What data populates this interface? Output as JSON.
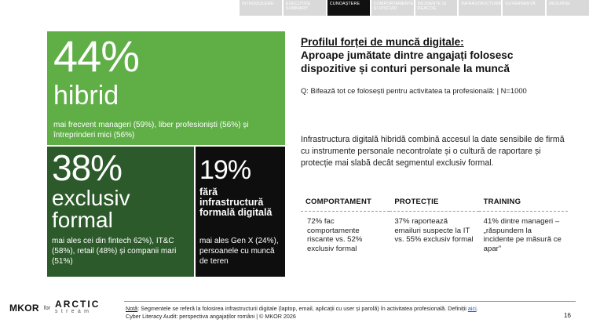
{
  "nav": {
    "tabs": [
      {
        "label": "INTRODUCERE",
        "active": false
      },
      {
        "label": "EXECUTIVE SUMMARY",
        "active": false
      },
      {
        "label": "CUNOAȘTERE",
        "active": true
      },
      {
        "label": "COMPORTAMENTE ȘI RISCURI",
        "active": false
      },
      {
        "label": "INCIDENTE ȘI REACȚIE",
        "active": false
      },
      {
        "label": "INFRASTRUCTURĂ",
        "active": false
      },
      {
        "label": "GUVERNANȚĂ",
        "active": false
      },
      {
        "label": "RESURSE",
        "active": false
      }
    ]
  },
  "stats": {
    "hybrid": {
      "pct": "44%",
      "label": "hibrid",
      "desc": "mai frecvent manageri (59%), liber profesioniști (56%) și întreprinderi mici (56%)",
      "color": "#5fae46"
    },
    "formal": {
      "pct": "38%",
      "label": "exclusiv formal",
      "desc": "mai ales cei din fintech 62%), IT&C (58%), retail (48%) și companii mari (51%)",
      "color": "#2c5a2a"
    },
    "none": {
      "pct": "19%",
      "label": "fără infrastructură formală digitală",
      "desc": "mai ales Gen X (24%), persoanele cu muncă de teren",
      "color": "#0e0e0e"
    }
  },
  "title": {
    "line1": "Profilul forței de muncă digitale:",
    "line2": "Aproape jumătate dintre angajați folosesc dispozitive și conturi personale la muncă"
  },
  "question": "Q: Bifează tot ce folosești pentru activitatea ta profesională: | N=1000",
  "body_text": "Infrastructura digitală hibridă combină accesul la date sensibile de firmă cu instrumente personale necontrolate și o cultură de raportare și protecție mai slabă decât segmentul exclusiv formal.",
  "columns": [
    {
      "head": "COMPORTAMENT",
      "body": "72% fac comportamente riscante vs. 52% exclusiv formal"
    },
    {
      "head": "PROTECȚIE",
      "body": "37% raportează emailuri suspecte la IT vs. 55% exclusiv formal"
    },
    {
      "head": "TRAINING",
      "body": "41% dintre manageri – „răspundem la incidente pe măsură ce apar”"
    }
  ],
  "footer": {
    "logo_mkor": "MKOR",
    "logo_for": "for",
    "logo_arctic": "ARCTIC",
    "logo_stream": "stream",
    "note_label": "Notă",
    "note_text": ": Segmentele se referă la folosirea infrastructurii digitale (laptop, email, aplicații cu user și parolă) în activitatea profesională. Definiții ",
    "note_link": "aici",
    "note_end": ".",
    "source": "Cyber Literacy Audit: perspectiva angajaților români | © MKOR 2026",
    "page_number": "16"
  }
}
